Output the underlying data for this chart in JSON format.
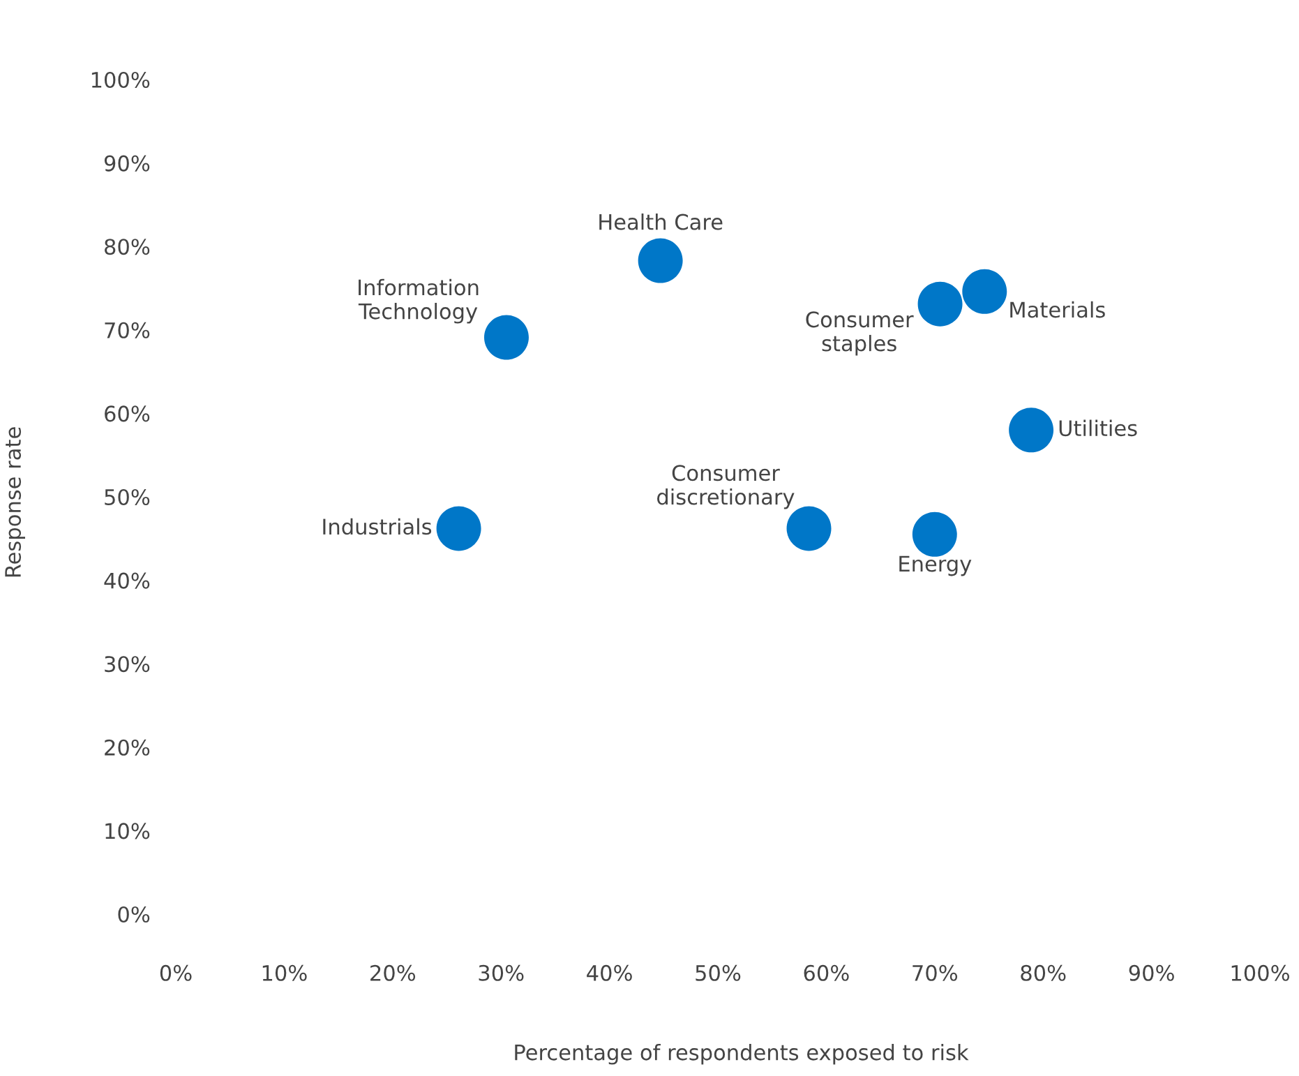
{
  "chart_data": {
    "type": "scatter",
    "xlabel": "Percentage of respondents exposed to risk",
    "ylabel": "Response rate",
    "series": [
      {
        "color": "#0077c8",
        "x": [
          44.7,
          30.5,
          26.1,
          58.4,
          70.0,
          70.5,
          74.6,
          78.9
        ],
        "values": [
          78.3,
          69.1,
          46.2,
          46.2,
          45.5,
          73.1,
          74.6,
          58.0
        ]
      }
    ],
    "annotations": [
      {
        "text": "Health Care",
        "x": 44.7,
        "y": 78.3
      },
      {
        "text": "Information\nTechnology",
        "x": 30.5,
        "y": 69.1
      },
      {
        "text": "Industrials",
        "x": 26.1,
        "y": 46.2
      },
      {
        "text": "Consumer\ndiscretionary",
        "x": 58.4,
        "y": 46.2
      },
      {
        "text": "Energy",
        "x": 70.0,
        "y": 45.5
      },
      {
        "text": "Consumer\nstaples",
        "x": 70.5,
        "y": 73.1
      },
      {
        "text": "Materials",
        "x": 74.6,
        "y": 74.6
      },
      {
        "text": "Utilities",
        "x": 78.9,
        "y": 58.0
      }
    ],
    "xlim": [
      0,
      100
    ],
    "ylim": [
      0,
      100
    ],
    "xticks": [
      {
        "value": 0,
        "label": "0%"
      },
      {
        "value": 10,
        "label": "10%"
      },
      {
        "value": 20,
        "label": "20%"
      },
      {
        "value": 30,
        "label": "30%"
      },
      {
        "value": 40,
        "label": "40%"
      },
      {
        "value": 50,
        "label": "50%"
      },
      {
        "value": 60,
        "label": "60%"
      },
      {
        "value": 70,
        "label": "70%"
      },
      {
        "value": 80,
        "label": "80%"
      },
      {
        "value": 90,
        "label": "90%"
      },
      {
        "value": 100,
        "label": "100%"
      }
    ],
    "yticks": [
      {
        "value": 0,
        "label": "0%"
      },
      {
        "value": 10,
        "label": "10%"
      },
      {
        "value": 20,
        "label": "20%"
      },
      {
        "value": 30,
        "label": "30%"
      },
      {
        "value": 40,
        "label": "40%"
      },
      {
        "value": 50,
        "label": "50%"
      },
      {
        "value": 60,
        "label": "60%"
      },
      {
        "value": 70,
        "label": "70%"
      },
      {
        "value": 80,
        "label": "80%"
      },
      {
        "value": 90,
        "label": "90%"
      },
      {
        "value": 100,
        "label": "100%"
      }
    ],
    "marker": "circle",
    "grid": false,
    "legend": false
  }
}
